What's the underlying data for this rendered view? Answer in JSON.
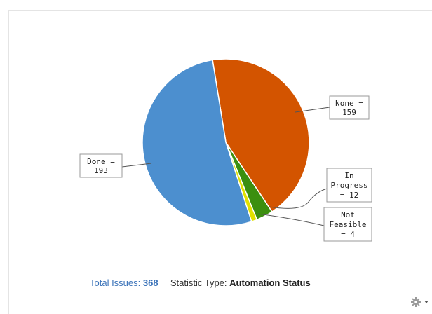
{
  "chart_data": {
    "type": "pie",
    "slices": [
      {
        "label": "None",
        "value": 159,
        "color": "#d35400"
      },
      {
        "label": "In Progress",
        "value": 12,
        "color": "#3b8f0f"
      },
      {
        "label": "Not Feasible",
        "value": 4,
        "color": "#e1e100"
      },
      {
        "label": "Done",
        "value": 193,
        "color": "#4c8fcf"
      }
    ],
    "labels": {
      "none": [
        "None =",
        "159"
      ],
      "in_progress": [
        "In",
        "Progress",
        "= 12"
      ],
      "not_feasible": [
        "Not",
        "Feasible",
        "= 4"
      ],
      "done": [
        "Done =",
        "193"
      ]
    }
  },
  "footer": {
    "total_label": "Total Issues:",
    "total_value": "368",
    "stat_label": "Statistic Type:",
    "stat_value": "Automation Status"
  },
  "gear_icon": "gear-icon",
  "dropdown_icon": "chevron-down-icon"
}
